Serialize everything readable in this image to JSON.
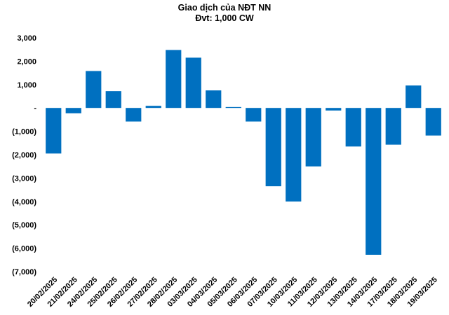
{
  "chart_data": {
    "type": "bar",
    "title": "Giao dịch của NĐT NN",
    "subtitle": "Đvt: 1,000 CW",
    "bar_color": "#0070C0",
    "ylim": [
      -7000,
      3000
    ],
    "yticks": [
      3000,
      2000,
      1000,
      0,
      -1000,
      -2000,
      -3000,
      -4000,
      -5000,
      -6000,
      -7000
    ],
    "ytick_labels": [
      "3,000",
      "2,000",
      "1,000",
      "-",
      "(1,000)",
      "(2,000)",
      "(3,000)",
      "(4,000)",
      "(5,000)",
      "(6,000)",
      "(7,000)"
    ],
    "categories": [
      "20/02/2025",
      "21/02/2025",
      "24/02/2025",
      "25/02/2025",
      "26/02/2025",
      "27/02/2025",
      "28/02/2025",
      "03/03/2025",
      "04/03/2025",
      "05/03/2025",
      "06/03/2025",
      "07/03/2025",
      "10/03/2025",
      "11/03/2025",
      "12/03/2025",
      "13/03/2025",
      "14/03/2025",
      "17/03/2025",
      "18/03/2025",
      "19/03/2025"
    ],
    "values": [
      -1950,
      -230,
      1580,
      720,
      -580,
      90,
      2480,
      2150,
      750,
      40,
      -580,
      -3350,
      -4000,
      -2500,
      -110,
      -1650,
      -6280,
      -1570,
      960,
      -1180
    ],
    "grid": false,
    "legend": "none"
  }
}
